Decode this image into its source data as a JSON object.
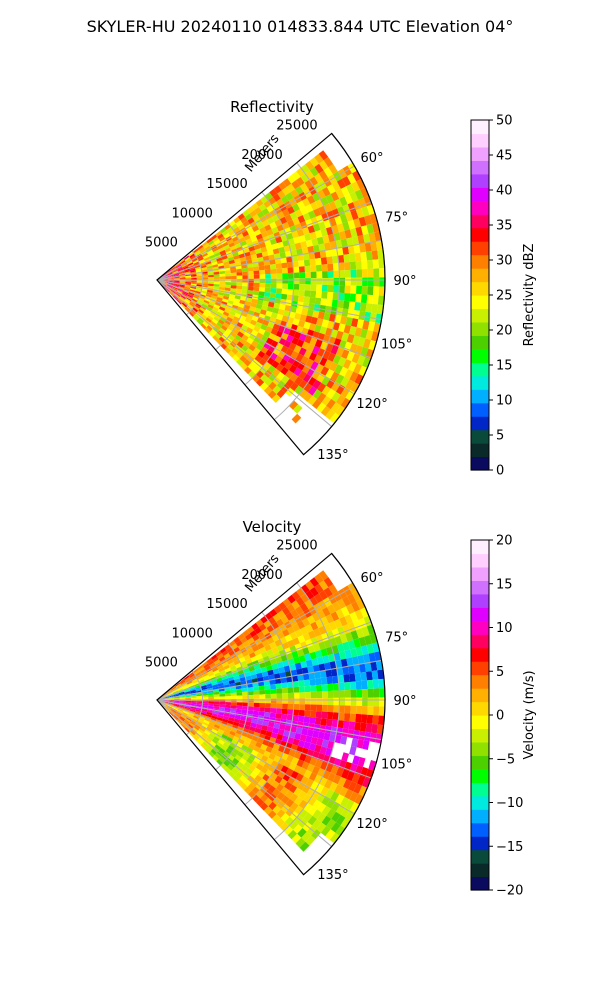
{
  "suptitle": "SKYLER-HU  20240110  014833.844 UTC Elevation 04°",
  "chart_data": [
    {
      "type": "heatmap",
      "projection": "polar-sector",
      "title": "Reflectivity",
      "r_axis_label": "Meters",
      "r_ticks": [
        "5000",
        "10000",
        "15000",
        "20000",
        "25000"
      ],
      "r_tick_values": [
        5000,
        10000,
        15000,
        20000,
        25000
      ],
      "r_max": 25000,
      "azimuth_range": [
        50,
        140
      ],
      "theta_ticks": [
        "60°",
        "75°",
        "90°",
        "105°",
        "120°",
        "135°"
      ],
      "theta_tick_values": [
        60,
        75,
        90,
        105,
        120,
        135
      ],
      "grid": true,
      "colorbar": {
        "label": "Reflectivity dBZ",
        "range": [
          0,
          50
        ],
        "ticks": [
          "0",
          "5",
          "10",
          "15",
          "20",
          "25",
          "30",
          "35",
          "40",
          "45",
          "50"
        ],
        "tick_values": [
          0,
          5,
          10,
          15,
          20,
          25,
          30,
          35,
          40,
          45,
          50
        ],
        "colors": [
          "#0a0a5e",
          "#0a2a2a",
          "#0a4a3a",
          "#0026c8",
          "#0060ff",
          "#00b0ff",
          "#00eae0",
          "#00ff90",
          "#00ff00",
          "#4cd000",
          "#90e000",
          "#c8f000",
          "#ffff00",
          "#ffd800",
          "#ffb000",
          "#ff8000",
          "#ff4000",
          "#ff0000",
          "#ff0060",
          "#ff00c0",
          "#e000ff",
          "#b040ff",
          "#d070ff",
          "#f0a0ff",
          "#ffd0ff",
          "#fff0ff"
        ]
      }
    },
    {
      "type": "heatmap",
      "projection": "polar-sector",
      "title": "Velocity",
      "r_axis_label": "Meters",
      "r_ticks": [
        "5000",
        "10000",
        "15000",
        "20000",
        "25000"
      ],
      "r_tick_values": [
        5000,
        10000,
        15000,
        20000,
        25000
      ],
      "r_max": 25000,
      "azimuth_range": [
        50,
        140
      ],
      "theta_ticks": [
        "60°",
        "75°",
        "90°",
        "105°",
        "120°",
        "135°"
      ],
      "theta_tick_values": [
        60,
        75,
        90,
        105,
        120,
        135
      ],
      "grid": true,
      "colorbar": {
        "label": "Velocity (m/s)",
        "range": [
          -20,
          20
        ],
        "ticks": [
          "−20",
          "−15",
          "−10",
          "−5",
          "0",
          "5",
          "10",
          "15",
          "20"
        ],
        "tick_values": [
          -20,
          -15,
          -10,
          -5,
          0,
          5,
          10,
          15,
          20
        ],
        "colors": [
          "#0a0a5e",
          "#0a2a2a",
          "#0a4a3a",
          "#0026c8",
          "#0060ff",
          "#00b0ff",
          "#00eae0",
          "#00ff90",
          "#00ff00",
          "#4cd000",
          "#90e000",
          "#c8f000",
          "#ffff00",
          "#ffd800",
          "#ffb000",
          "#ff8000",
          "#ff4000",
          "#ff0000",
          "#ff0060",
          "#ff00c0",
          "#e000ff",
          "#b040ff",
          "#d070ff",
          "#f0a0ff",
          "#ffd0ff",
          "#fff0ff"
        ]
      }
    }
  ]
}
